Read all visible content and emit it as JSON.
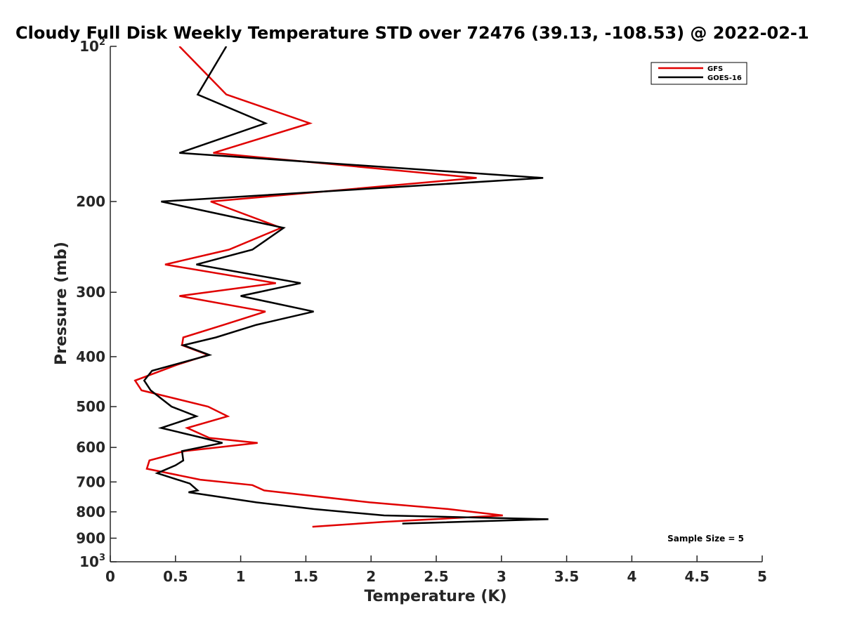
{
  "chart_data": {
    "type": "line",
    "title": "Cloudy Full Disk Weekly Temperature STD over 72476 (39.13, -108.53) @ 2022-02-1",
    "xlabel": "Temperature (K)",
    "ylabel": "Pressure (mb)",
    "xlim": [
      0,
      5
    ],
    "ylim": [
      100,
      1000
    ],
    "y_scale": "log",
    "y_reversed": true,
    "x_ticks": [
      "0",
      "0.5",
      "1",
      "1.5",
      "2",
      "2.5",
      "3",
      "3.5",
      "4",
      "4.5",
      "5"
    ],
    "y_ticks": [
      {
        "value": 100,
        "base": "10",
        "exp": "2"
      },
      {
        "value": 200,
        "label": "200"
      },
      {
        "value": 300,
        "label": "300"
      },
      {
        "value": 400,
        "label": "400"
      },
      {
        "value": 500,
        "label": "500"
      },
      {
        "value": 600,
        "label": "600"
      },
      {
        "value": 700,
        "label": "700"
      },
      {
        "value": 800,
        "label": "800"
      },
      {
        "value": 900,
        "label": "900"
      },
      {
        "value": 1000,
        "base": "10",
        "exp": "3"
      }
    ],
    "grid": false,
    "legend_position": "top-right",
    "series": [
      {
        "name": "GFS",
        "color": "#e00000",
        "points": [
          [
            0.53,
            100
          ],
          [
            0.89,
            124
          ],
          [
            1.53,
            141
          ],
          [
            0.79,
            161
          ],
          [
            2.81,
            180
          ],
          [
            0.77,
            200
          ],
          [
            1.31,
            225
          ],
          [
            0.91,
            248
          ],
          [
            0.42,
            265
          ],
          [
            1.27,
            288
          ],
          [
            0.53,
            305
          ],
          [
            1.19,
            327
          ],
          [
            0.87,
            347
          ],
          [
            0.56,
            367
          ],
          [
            0.55,
            380
          ],
          [
            0.75,
            397
          ],
          [
            0.51,
            415
          ],
          [
            0.19,
            445
          ],
          [
            0.24,
            465
          ],
          [
            0.75,
            500
          ],
          [
            0.9,
            522
          ],
          [
            0.59,
            550
          ],
          [
            0.76,
            575
          ],
          [
            1.13,
            588
          ],
          [
            0.57,
            610
          ],
          [
            0.3,
            636
          ],
          [
            0.28,
            660
          ],
          [
            0.69,
            693
          ],
          [
            1.09,
            710
          ],
          [
            1.18,
            727
          ],
          [
            1.99,
            767
          ],
          [
            2.59,
            790
          ],
          [
            3.01,
            813
          ],
          [
            2.09,
            837
          ],
          [
            1.55,
            855
          ]
        ]
      },
      {
        "name": "GOES-16",
        "color": "#000000",
        "points": [
          [
            0.89,
            100
          ],
          [
            0.67,
            124
          ],
          [
            1.19,
            141
          ],
          [
            0.53,
            161
          ],
          [
            3.32,
            180
          ],
          [
            0.39,
            200
          ],
          [
            1.33,
            225
          ],
          [
            1.09,
            248
          ],
          [
            0.66,
            265
          ],
          [
            1.46,
            288
          ],
          [
            1.0,
            305
          ],
          [
            1.56,
            327
          ],
          [
            1.12,
            347
          ],
          [
            0.81,
            367
          ],
          [
            0.56,
            380
          ],
          [
            0.76,
            397
          ],
          [
            0.32,
            426
          ],
          [
            0.26,
            445
          ],
          [
            0.31,
            465
          ],
          [
            0.47,
            500
          ],
          [
            0.66,
            522
          ],
          [
            0.39,
            550
          ],
          [
            0.71,
            575
          ],
          [
            0.86,
            588
          ],
          [
            0.55,
            610
          ],
          [
            0.56,
            636
          ],
          [
            0.5,
            650
          ],
          [
            0.36,
            673
          ],
          [
            0.61,
            705
          ],
          [
            0.67,
            727
          ],
          [
            0.6,
            733
          ],
          [
            1.12,
            767
          ],
          [
            1.56,
            790
          ],
          [
            2.1,
            813
          ],
          [
            3.36,
            827
          ],
          [
            2.24,
            843
          ]
        ]
      }
    ],
    "annotations": [
      "Sample Size = 5"
    ]
  }
}
